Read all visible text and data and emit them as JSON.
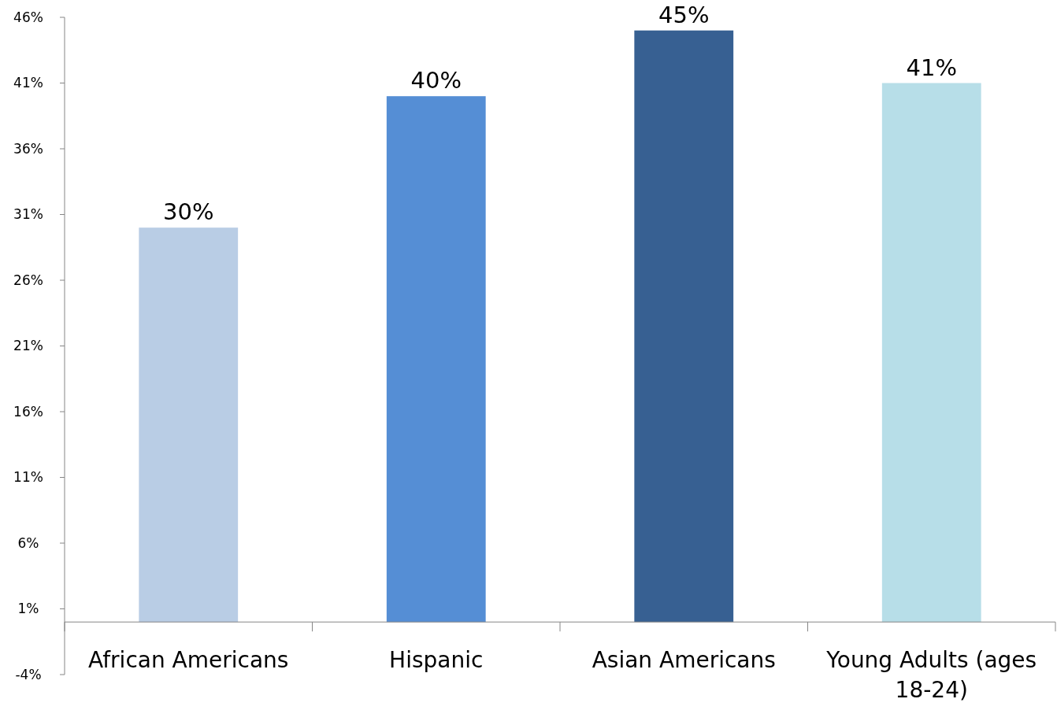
{
  "chart_data": {
    "type": "bar",
    "categories": [
      "African Americans",
      "Hispanic",
      "Asian Americans",
      "Young Adults (ages 18-24)"
    ],
    "values": [
      30,
      40,
      45,
      41
    ],
    "colors": [
      "#b9cde5",
      "#558ed5",
      "#376092",
      "#b7dee8"
    ],
    "value_labels": [
      "30%",
      "40%",
      "45%",
      "41%"
    ],
    "ylim": [
      -4,
      46
    ],
    "yticks": [
      {
        "value": -4,
        "label": "-4%"
      },
      {
        "value": 1,
        "label": "1%"
      },
      {
        "value": 6,
        "label": "6%"
      },
      {
        "value": 11,
        "label": "11%"
      },
      {
        "value": 16,
        "label": "16%"
      },
      {
        "value": 21,
        "label": "21%"
      },
      {
        "value": 26,
        "label": "26%"
      },
      {
        "value": 31,
        "label": "31%"
      },
      {
        "value": 36,
        "label": "36%"
      },
      {
        "value": 41,
        "label": "41%"
      },
      {
        "value": 46,
        "label": "46%"
      }
    ],
    "grid": false
  }
}
